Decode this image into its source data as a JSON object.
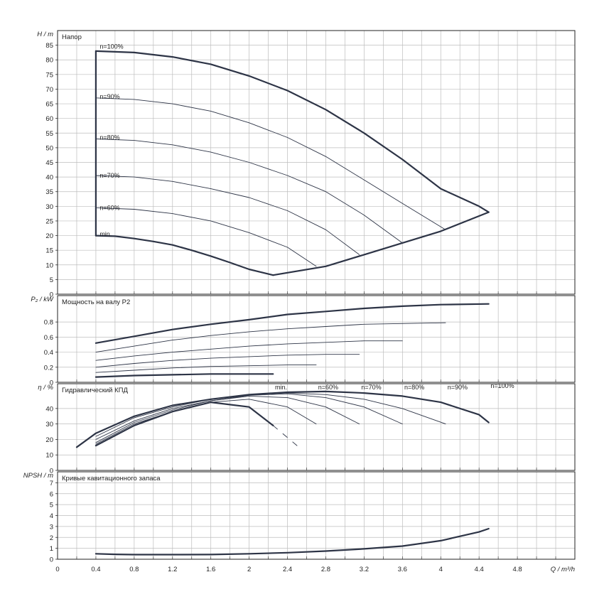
{
  "x_axis": {
    "label": "Q / m³/h",
    "ticks": [
      0,
      0.4,
      0.8,
      1.2,
      1.6,
      2,
      2.4,
      2.8,
      3.2,
      3.6,
      4,
      4.4,
      4.8
    ],
    "range": [
      0,
      5.4
    ]
  },
  "chart_data": [
    {
      "type": "line",
      "title": "Напор",
      "ylabel": "H / m",
      "ylim": [
        0,
        90
      ],
      "yticks": [
        0,
        5,
        10,
        15,
        20,
        25,
        30,
        35,
        40,
        45,
        50,
        55,
        60,
        65,
        70,
        75,
        80,
        85
      ],
      "series": [
        {
          "name": "n=100%",
          "bold": true,
          "x": [
            0.4,
            0.8,
            1.2,
            1.6,
            2.0,
            2.4,
            2.8,
            3.2,
            3.6,
            4.0,
            4.4,
            4.5
          ],
          "y": [
            83,
            82.5,
            81,
            78.5,
            74.5,
            69.5,
            63,
            55,
            46,
            36,
            30,
            28
          ]
        },
        {
          "name": "n=90%",
          "bold": false,
          "x": [
            0.4,
            0.8,
            1.2,
            1.6,
            2.0,
            2.4,
            2.8,
            3.2,
            3.6,
            4.05
          ],
          "y": [
            67,
            66.5,
            65,
            62.5,
            58.5,
            53.5,
            47,
            39,
            31,
            22
          ]
        },
        {
          "name": "n=80%",
          "bold": false,
          "x": [
            0.4,
            0.8,
            1.2,
            1.6,
            2.0,
            2.4,
            2.8,
            3.2,
            3.6
          ],
          "y": [
            53,
            52.5,
            51,
            48.5,
            45,
            40.5,
            35,
            27,
            17.5
          ]
        },
        {
          "name": "n=70%",
          "bold": false,
          "x": [
            0.4,
            0.8,
            1.2,
            1.6,
            2.0,
            2.4,
            2.8,
            3.15
          ],
          "y": [
            40.5,
            40,
            38.5,
            36,
            33,
            28.5,
            22,
            13.5
          ]
        },
        {
          "name": "n=60%",
          "bold": false,
          "x": [
            0.4,
            0.8,
            1.2,
            1.6,
            2.0,
            2.4,
            2.7
          ],
          "y": [
            29.5,
            29,
            27.5,
            25,
            21,
            16,
            9.5
          ]
        },
        {
          "name": "min.",
          "bold": true,
          "x": [
            0.4,
            0.6,
            0.8,
            1.0,
            1.2,
            1.4,
            1.6,
            1.8,
            2.0,
            2.25
          ],
          "y": [
            20,
            19.8,
            19,
            18,
            16.8,
            15,
            13,
            10.8,
            8.5,
            6.5
          ]
        },
        {
          "name": "",
          "bold": true,
          "x": [
            0.4,
            0.4
          ],
          "y": [
            20,
            83
          ]
        },
        {
          "name": "",
          "bold": true,
          "x": [
            2.25,
            2.8,
            3.2,
            3.6,
            4.0,
            4.5
          ],
          "y": [
            6.5,
            9.5,
            13.5,
            17.5,
            21.5,
            28
          ]
        }
      ],
      "labels": [
        {
          "text": "n=100%",
          "x": 0.44,
          "y": 84.5
        },
        {
          "text": "n=90%",
          "x": 0.44,
          "y": 67.5
        },
        {
          "text": "n=80%",
          "x": 0.44,
          "y": 53.5
        },
        {
          "text": "n=70%",
          "x": 0.44,
          "y": 40.5
        },
        {
          "text": "n=60%",
          "x": 0.44,
          "y": 29.5
        },
        {
          "text": "min.",
          "x": 0.44,
          "y": 20.5
        }
      ]
    },
    {
      "type": "line",
      "title": "Мощность на валу P2",
      "ylabel": "P₂ / kW",
      "ylim": [
        0,
        1.15
      ],
      "yticks": [
        0,
        0.2,
        0.4,
        0.6,
        0.8
      ],
      "series": [
        {
          "name": "n=100%",
          "bold": true,
          "x": [
            0.4,
            0.8,
            1.2,
            1.6,
            2.0,
            2.4,
            2.8,
            3.2,
            3.6,
            4.0,
            4.5
          ],
          "y": [
            0.52,
            0.61,
            0.7,
            0.77,
            0.83,
            0.9,
            0.94,
            0.98,
            1.01,
            1.03,
            1.04
          ]
        },
        {
          "name": "n=90%",
          "bold": false,
          "x": [
            0.4,
            0.8,
            1.2,
            1.6,
            2.0,
            2.4,
            2.8,
            3.2,
            3.6,
            4.05
          ],
          "y": [
            0.4,
            0.48,
            0.56,
            0.62,
            0.67,
            0.71,
            0.74,
            0.77,
            0.78,
            0.79
          ]
        },
        {
          "name": "n=80%",
          "bold": false,
          "x": [
            0.4,
            0.8,
            1.2,
            1.6,
            2.0,
            2.4,
            2.8,
            3.2,
            3.6
          ],
          "y": [
            0.29,
            0.35,
            0.4,
            0.44,
            0.48,
            0.51,
            0.53,
            0.55,
            0.55
          ]
        },
        {
          "name": "n=70%",
          "bold": false,
          "x": [
            0.4,
            0.8,
            1.2,
            1.6,
            2.0,
            2.4,
            2.8,
            3.15
          ],
          "y": [
            0.2,
            0.25,
            0.29,
            0.32,
            0.34,
            0.36,
            0.37,
            0.37
          ]
        },
        {
          "name": "n=60%",
          "bold": false,
          "x": [
            0.4,
            0.8,
            1.2,
            1.6,
            2.0,
            2.4,
            2.7
          ],
          "y": [
            0.13,
            0.16,
            0.19,
            0.21,
            0.22,
            0.23,
            0.23
          ]
        },
        {
          "name": "min.",
          "bold": true,
          "x": [
            0.4,
            0.8,
            1.2,
            1.6,
            2.0,
            2.25
          ],
          "y": [
            0.07,
            0.09,
            0.1,
            0.11,
            0.11,
            0.11
          ]
        }
      ],
      "labels": [
        {
          "text": "n=100%",
          "x": 4.52,
          "y": 0.02,
          "from": "n=100%"
        },
        {
          "text": "n=90%",
          "x": 4.07,
          "y": 0.0
        },
        {
          "text": "n=80%",
          "x": 3.62,
          "y": 0.0
        },
        {
          "text": "n=70%",
          "x": 3.17,
          "y": 0.0
        },
        {
          "text": "n=60%",
          "x": 2.72,
          "y": 0.0
        },
        {
          "text": "min.",
          "x": 2.27,
          "y": 0.0
        }
      ]
    },
    {
      "type": "line",
      "title": "Гидравлический КПД",
      "ylabel": "η / %",
      "ylim": [
        0,
        56
      ],
      "yticks": [
        0,
        10,
        20,
        30,
        40
      ],
      "series": [
        {
          "name": "n=100%",
          "bold": true,
          "x": [
            0.2,
            0.4,
            0.8,
            1.2,
            1.6,
            2.0,
            2.4,
            2.8,
            3.2,
            3.6,
            4.0,
            4.4,
            4.5
          ],
          "y": [
            15,
            24,
            35,
            42,
            46,
            49,
            50.5,
            51,
            50,
            48,
            44,
            36,
            31
          ]
        },
        {
          "name": "n=90%",
          "bold": false,
          "x": [
            0.4,
            0.8,
            1.2,
            1.6,
            2.0,
            2.4,
            2.8,
            3.2,
            3.6,
            4.05
          ],
          "y": [
            22,
            34,
            41,
            46,
            49,
            50,
            49,
            46,
            40,
            30
          ]
        },
        {
          "name": "n=80%",
          "bold": false,
          "x": [
            0.4,
            0.8,
            1.2,
            1.6,
            2.0,
            2.4,
            2.8,
            3.2,
            3.6
          ],
          "y": [
            20,
            32,
            40,
            45,
            48.5,
            49.5,
            47,
            41,
            30
          ]
        },
        {
          "name": "n=70%",
          "bold": false,
          "x": [
            0.4,
            0.8,
            1.2,
            1.6,
            2.0,
            2.4,
            2.8,
            3.15
          ],
          "y": [
            18,
            31,
            39,
            45,
            48,
            47,
            41,
            30
          ]
        },
        {
          "name": "n=60%",
          "bold": false,
          "x": [
            0.4,
            0.8,
            1.2,
            1.6,
            2.0,
            2.4,
            2.7
          ],
          "y": [
            17,
            30,
            38,
            44,
            46,
            41,
            30
          ]
        },
        {
          "name": "min.",
          "bold": true,
          "x": [
            0.4,
            0.8,
            1.2,
            1.6,
            2.0,
            2.25
          ],
          "y": [
            16,
            29,
            38,
            44,
            41,
            29
          ]
        },
        {
          "name": "",
          "bold": false,
          "dashed": true,
          "x": [
            2.25,
            2.5
          ],
          "y": [
            29,
            16
          ]
        }
      ],
      "labels": []
    },
    {
      "type": "line",
      "title": "Кривые кавитационного запаса",
      "ylabel": "NPSH / m",
      "ylim": [
        0,
        8
      ],
      "yticks": [
        0,
        1,
        2,
        3,
        4,
        5,
        6,
        7
      ],
      "series": [
        {
          "name": "",
          "bold": true,
          "x": [
            0.4,
            0.6,
            0.8,
            1.2,
            1.6,
            2.0,
            2.4,
            2.8,
            3.2,
            3.6,
            4.0,
            4.4,
            4.5
          ],
          "y": [
            0.5,
            0.45,
            0.42,
            0.42,
            0.43,
            0.5,
            0.6,
            0.75,
            0.95,
            1.2,
            1.7,
            2.5,
            2.8
          ]
        }
      ],
      "labels": []
    }
  ]
}
